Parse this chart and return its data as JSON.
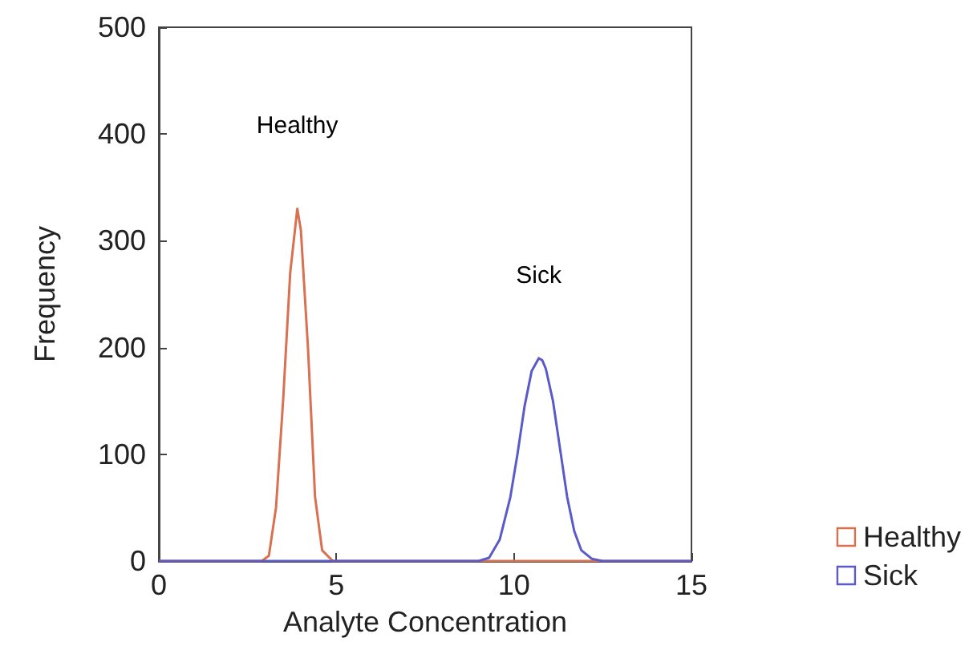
{
  "chart_data": {
    "type": "line",
    "xlabel": "Analyte Concentration",
    "ylabel": "Frequency",
    "xlim": [
      0,
      15
    ],
    "xticks": [
      0,
      5,
      10,
      15
    ],
    "ylim": [
      0,
      500
    ],
    "yticks": [
      0,
      100,
      200,
      300,
      400,
      500
    ],
    "grid": false,
    "legend": "bottom right",
    "marker": "none",
    "line_style": "solid",
    "annotations": [
      "Healthy",
      "Sick"
    ],
    "series": [
      {
        "name": "Healthy",
        "color": "#d9704f",
        "x": [
          0,
          2.9,
          3.1,
          3.3,
          3.5,
          3.7,
          3.9,
          4.0,
          4.2,
          4.4,
          4.6,
          4.9,
          15
        ],
        "values": [
          0,
          0,
          5,
          50,
          150,
          270,
          330,
          310,
          200,
          60,
          10,
          0,
          0
        ]
      },
      {
        "name": "Sick",
        "color": "#5a5ac8",
        "x": [
          0,
          9.0,
          9.3,
          9.6,
          9.9,
          10.1,
          10.3,
          10.5,
          10.7,
          10.8,
          10.9,
          11.1,
          11.3,
          11.5,
          11.7,
          11.9,
          12.2,
          12.5,
          15
        ],
        "values": [
          0,
          0,
          3,
          20,
          60,
          100,
          145,
          178,
          190,
          188,
          180,
          150,
          105,
          60,
          28,
          10,
          2,
          0,
          0
        ]
      }
    ]
  }
}
